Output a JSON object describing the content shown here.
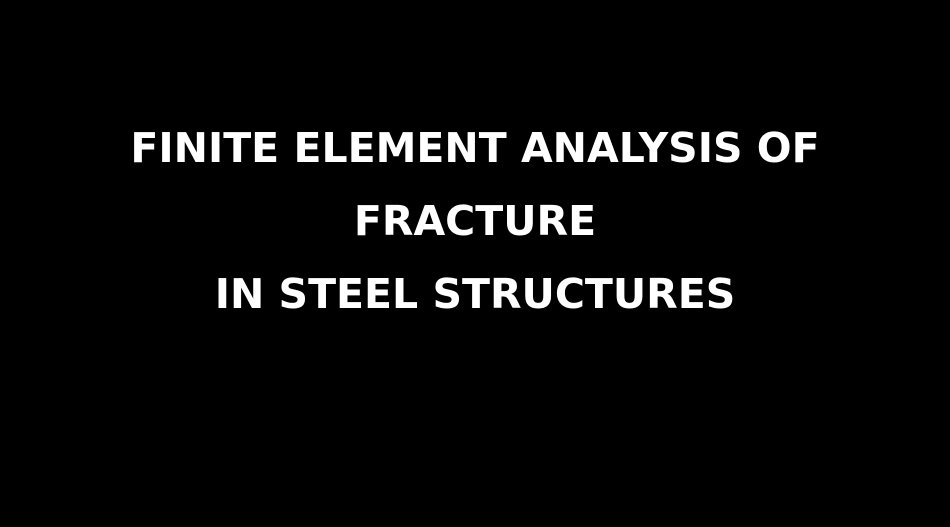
{
  "background_color": "#000000",
  "text_color": "#ffffff",
  "title_lines": [
    "FINITE ELEMENT ANALYSIS OF",
    "FRACTURE",
    "IN STEEL STRUCTURES"
  ]
}
